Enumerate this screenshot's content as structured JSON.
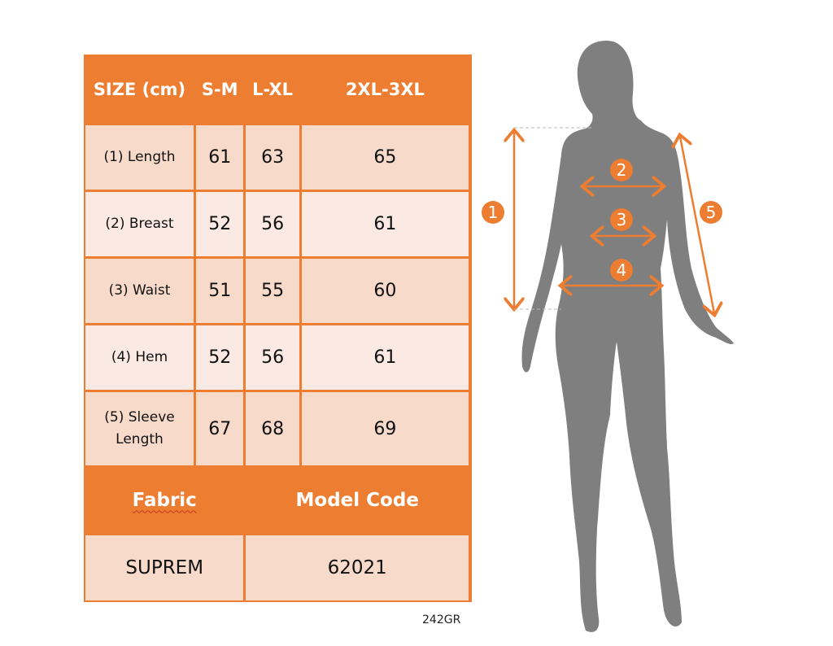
{
  "table": {
    "headers": [
      "SIZE (cm)",
      "S-M",
      "L-XL",
      "2XL-3XL"
    ],
    "rows": [
      {
        "label": "(1) Length",
        "values": [
          "61",
          "63",
          "65"
        ]
      },
      {
        "label": "(2) Breast",
        "values": [
          "52",
          "56",
          "61"
        ]
      },
      {
        "label": "(3) Waist",
        "values": [
          "51",
          "55",
          "60"
        ]
      },
      {
        "label": "(4) Hem",
        "values": [
          "52",
          "56",
          "61"
        ]
      },
      {
        "label": "(5) Sleeve Length",
        "values": [
          "67",
          "68",
          "69"
        ]
      }
    ],
    "footer_headers": [
      "Fabric",
      "Model Code"
    ],
    "footer_values": [
      "SUPREM",
      "62021"
    ]
  },
  "product_code": "242GR",
  "figure": {
    "markers": [
      "1",
      "2",
      "3",
      "4",
      "5"
    ]
  },
  "colors": {
    "accent": "#ED7D31",
    "silhouette": "#7F7F7F"
  }
}
